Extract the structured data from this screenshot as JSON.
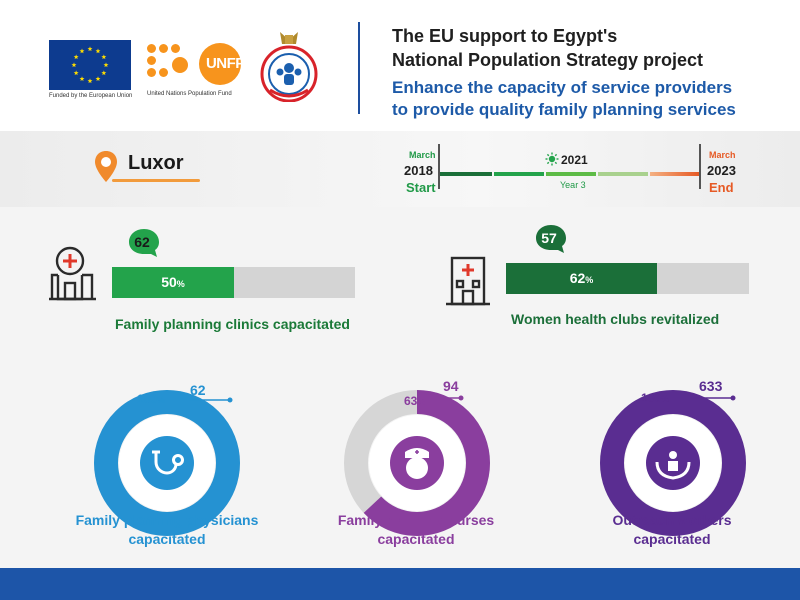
{
  "header": {
    "eu_caption": "Funded by the European Union",
    "un_caption": "United Nations Population Fund",
    "unfpa_logo_text": "UNFPA",
    "title_line_1": "The EU support to Egypt's",
    "title_line_2": "National Population Strategy project",
    "subtitle_line_1": "Enhance the capacity of service providers",
    "subtitle_line_2": "to provide quality family planning services"
  },
  "location": {
    "name": "Luxor",
    "icon": "location-pin-icon"
  },
  "timeline": {
    "start": {
      "month": "March",
      "year": "2018",
      "label": "Start"
    },
    "current": {
      "year": "2021",
      "label": "Year 3"
    },
    "end": {
      "month": "March",
      "year": "2023",
      "label": "End"
    },
    "progress": 0.62
  },
  "bar_stats": [
    {
      "count": "62",
      "percent": 50,
      "percent_label": "50",
      "percent_sign": "%",
      "caption": "Family planning clinics capacitated",
      "color": "#23a34b"
    },
    {
      "count": "57",
      "percent": 62,
      "percent_label": "62",
      "percent_sign": "%",
      "caption": "Women health clubs revitalized",
      "color": "#1b6f39"
    }
  ],
  "donut_stats": [
    {
      "percent": 100,
      "percent_label": "100",
      "percent_sign": "%",
      "count": "62",
      "caption_line_1": "Family planning physicians",
      "caption_line_2": "capacitated",
      "color": "#2592d2",
      "icon": "stethoscope-icon"
    },
    {
      "percent": 63,
      "percent_label": "63",
      "percent_sign": "%",
      "count": "94",
      "caption_line_1": "Family planning nurses",
      "caption_line_2": "capacitated",
      "color": "#8a3e9e",
      "icon": "nurse-icon"
    },
    {
      "percent": 100,
      "percent_label": "100",
      "percent_sign": "%",
      "count": "633",
      "caption_line_1": "Outreach workers",
      "caption_line_2": "capacitated",
      "color": "#5a2d91",
      "icon": "hands-heart-icon"
    }
  ],
  "colors": {
    "brand_blue": "#1d55a8",
    "green": "#23a34b",
    "dark_green": "#1b6f39",
    "orange": "#e65a25",
    "unfpa_orange": "#f7941d"
  }
}
